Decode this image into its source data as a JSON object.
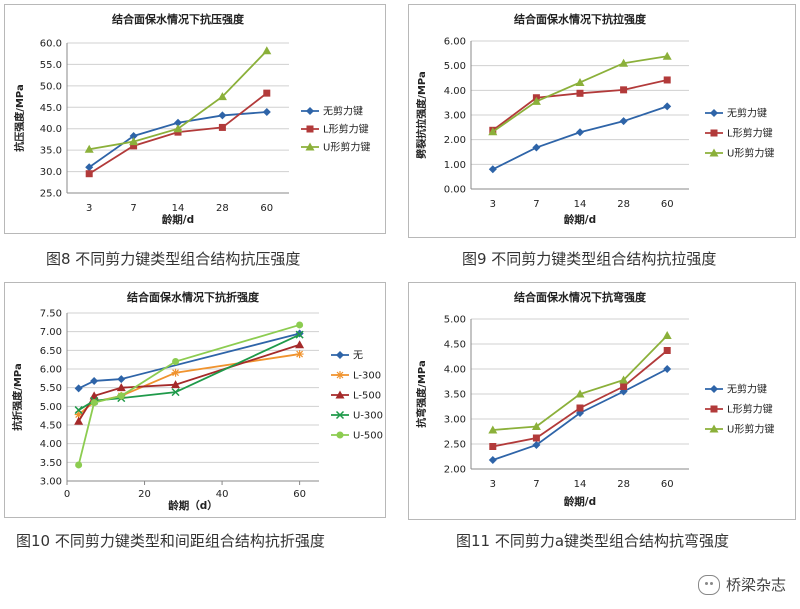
{
  "captions": [
    "图8  不同剪力键类型组合结构抗压强度",
    "图9  不同剪力键类型组合结构抗拉强度",
    "图10  不同剪力键类型和间距组合结构抗折强度",
    "图11  不同剪力a键类型组合结构抗弯强度"
  ],
  "watermark": "桥梁杂志",
  "colors": {
    "blue": "#2e64a8",
    "red": "#b23a3a",
    "green": "#8bb03a",
    "orange": "#f0932e",
    "darkred": "#a52a2a",
    "teal": "#1f9a4a",
    "lightgreen": "#8ccc50"
  },
  "chart_data": [
    {
      "type": "line",
      "title": "结合面保水情况下抗压强度",
      "xlabel": "龄期/d",
      "ylabel": "抗压强度/MPa",
      "categories": [
        "3",
        "7",
        "14",
        "28",
        "60"
      ],
      "ylim": [
        25.0,
        60.0
      ],
      "yticks": [
        "25.0",
        "30.0",
        "35.0",
        "40.0",
        "45.0",
        "50.0",
        "55.0",
        "60.0"
      ],
      "legend": "right",
      "series": [
        {
          "name": "无剪力键",
          "values": [
            31.0,
            38.3,
            41.4,
            43.1,
            43.9
          ],
          "color": "#2e64a8",
          "marker": "diamond"
        },
        {
          "name": "L形剪力键",
          "values": [
            29.5,
            36.0,
            39.2,
            40.3,
            48.3
          ],
          "color": "#b23a3a",
          "marker": "square"
        },
        {
          "name": "U形剪力键",
          "values": [
            35.2,
            37.0,
            40.0,
            47.5,
            58.2
          ],
          "color": "#8bb03a",
          "marker": "triangle"
        }
      ]
    },
    {
      "type": "line",
      "title": "结合面保水情况下抗拉强度",
      "xlabel": "龄期/d",
      "ylabel": "劈裂抗拉强度/MPa",
      "categories": [
        "3",
        "7",
        "14",
        "28",
        "60"
      ],
      "ylim": [
        0.0,
        6.0
      ],
      "yticks": [
        "0.00",
        "1.00",
        "2.00",
        "3.00",
        "4.00",
        "5.00",
        "6.00"
      ],
      "legend": "right",
      "series": [
        {
          "name": "无剪力键",
          "values": [
            0.8,
            1.68,
            2.3,
            2.75,
            3.35
          ],
          "color": "#2e64a8",
          "marker": "diamond"
        },
        {
          "name": "L形剪力键",
          "values": [
            2.38,
            3.7,
            3.88,
            4.02,
            4.42
          ],
          "color": "#b23a3a",
          "marker": "square"
        },
        {
          "name": "U形剪力键",
          "values": [
            2.32,
            3.55,
            4.32,
            5.1,
            5.38
          ],
          "color": "#8bb03a",
          "marker": "triangle"
        }
      ]
    },
    {
      "type": "line",
      "title": "结合面保水情况下抗折强度",
      "xlabel": "龄期（d）",
      "ylabel": "抗折强度/MPa",
      "xlim": [
        0,
        65
      ],
      "xticks": [
        "0",
        "20",
        "40",
        "60"
      ],
      "ylim": [
        3.0,
        7.5
      ],
      "yticks": [
        "3.00",
        "3.50",
        "4.00",
        "4.50",
        "5.00",
        "5.50",
        "6.00",
        "6.50",
        "7.00",
        "7.50"
      ],
      "legend": "right",
      "series": [
        {
          "name": "无",
          "x": [
            3,
            7,
            14,
            60
          ],
          "values": [
            5.48,
            5.68,
            5.73,
            6.95
          ],
          "color": "#2e64a8",
          "marker": "diamond"
        },
        {
          "name": "L-300",
          "x": [
            3,
            7,
            14,
            28,
            60
          ],
          "values": [
            4.78,
            5.12,
            5.28,
            5.9,
            6.4
          ],
          "color": "#f0932e",
          "marker": "star"
        },
        {
          "name": "L-500",
          "x": [
            3,
            7,
            14,
            28,
            60
          ],
          "values": [
            4.6,
            5.28,
            5.5,
            5.58,
            6.65
          ],
          "color": "#a52a2a",
          "marker": "triangle"
        },
        {
          "name": "U-300",
          "x": [
            3,
            7,
            14,
            28,
            60
          ],
          "values": [
            4.9,
            5.15,
            5.22,
            5.38,
            6.92
          ],
          "color": "#1f9a4a",
          "marker": "x"
        },
        {
          "name": "U-500",
          "x": [
            3,
            7,
            14,
            28,
            60
          ],
          "values": [
            3.43,
            5.1,
            5.28,
            6.2,
            7.18
          ],
          "color": "#8ccc50",
          "marker": "circle"
        }
      ]
    },
    {
      "type": "line",
      "title": "结合面保水情况下抗弯强度",
      "xlabel": "龄期/d",
      "ylabel": "抗弯强度/MPa",
      "categories": [
        "3",
        "7",
        "14",
        "28",
        "60"
      ],
      "ylim": [
        2.0,
        5.0
      ],
      "yticks": [
        "2.00",
        "2.50",
        "3.00",
        "3.50",
        "4.00",
        "4.50",
        "5.00"
      ],
      "legend": "right",
      "series": [
        {
          "name": "无剪力键",
          "values": [
            2.18,
            2.48,
            3.12,
            3.55,
            4.0
          ],
          "color": "#2e64a8",
          "marker": "diamond"
        },
        {
          "name": "L形剪力键",
          "values": [
            2.45,
            2.62,
            3.22,
            3.65,
            4.37
          ],
          "color": "#b23a3a",
          "marker": "square"
        },
        {
          "name": "U形剪力键",
          "values": [
            2.78,
            2.85,
            3.5,
            3.78,
            4.67
          ],
          "color": "#8bb03a",
          "marker": "triangle"
        }
      ]
    }
  ]
}
